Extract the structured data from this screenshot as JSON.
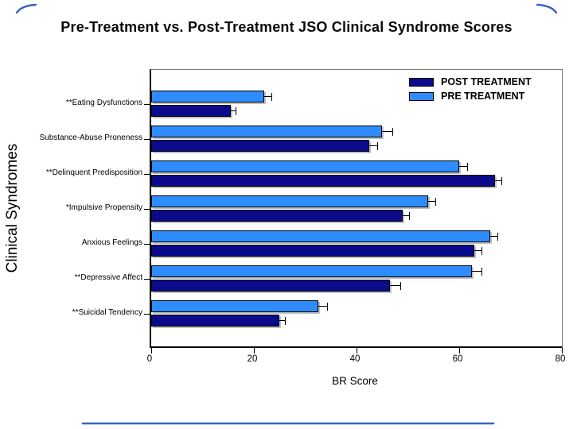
{
  "title": "Pre-Treatment vs. Post-Treatment JSO Clinical Syndrome Scores",
  "decor": {
    "frame_color": "#3A63C6"
  },
  "chart_data": {
    "type": "bar",
    "orientation": "horizontal",
    "title": "Pre-Treatment vs. Post-Treatment JSO Clinical Syndrome Scores",
    "xlabel": "BR Score",
    "ylabel": "Clinical Syndromes",
    "xlim": [
      0,
      80
    ],
    "xticks": [
      0,
      20,
      40,
      60,
      80
    ],
    "grid": false,
    "legend_position": "top-right inside plot",
    "categories": [
      "**Eating Dysfunctions",
      "Substance-Abuse Proneness",
      "**Delinquent Predisposition",
      "*Impulsive Propensity",
      "Anxious Feelings",
      "**Depressive Affect",
      "**Suicidal Tendency"
    ],
    "series": [
      {
        "name": "POST TREATMENT",
        "color": "#0A0A8B",
        "position_in_group": 1,
        "values": [
          15.5,
          42.5,
          67,
          49,
          63,
          46.5,
          25
        ],
        "errors": [
          1.0,
          1.6,
          1.2,
          1.2,
          1.3,
          2.1,
          1.1
        ]
      },
      {
        "name": "PRE TREATMENT",
        "color": "#2E8CFC",
        "position_in_group": 0,
        "values": [
          22,
          45,
          60,
          54,
          66,
          62.5,
          32.5
        ],
        "errors": [
          1.4,
          2.0,
          1.6,
          1.4,
          1.5,
          1.8,
          1.8
        ]
      }
    ]
  }
}
